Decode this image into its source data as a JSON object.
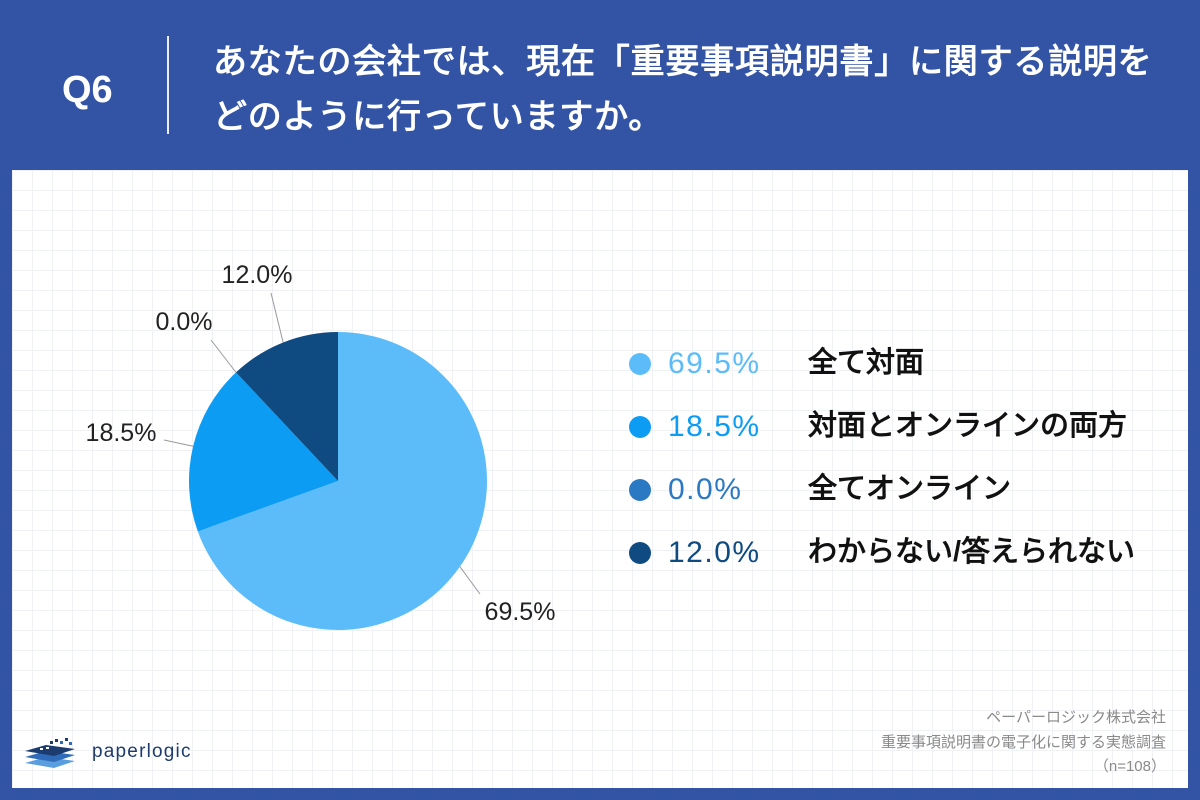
{
  "question": {
    "number": "Q6",
    "title_lines": [
      "あなたの会社では、現在「重要事項説明書」に関する説明を",
      "どのように行っていますか。"
    ]
  },
  "colors": {
    "background": "#3354a4",
    "panel": "#ffffff",
    "header_text": "#ffffff",
    "data_label_text": "#222222",
    "legend_label_text": "#111111",
    "source_text": "#8a8a8a",
    "logo": "#1f3b6b",
    "leader_line": "#9a9a9a"
  },
  "chart_data": {
    "type": "pie",
    "categories": [
      "全て対面",
      "対面とオンラインの両方",
      "全てオンライン",
      "わからない/答えられない"
    ],
    "values": [
      69.5,
      18.5,
      0.0,
      12.0
    ],
    "data_labels": [
      "69.5%",
      "18.5%",
      "0.0%",
      "12.0%"
    ],
    "colors": [
      "#5cbcfa",
      "#0d9cf4",
      "#2c79c3",
      "#0f4a80"
    ],
    "legend_position": "right"
  },
  "logo": {
    "text": "paperlogic"
  },
  "source": {
    "lines": [
      "ペーパーロジック株式会社",
      "重要事項説明書の電子化に関する実態調査",
      "（n=108）"
    ]
  }
}
